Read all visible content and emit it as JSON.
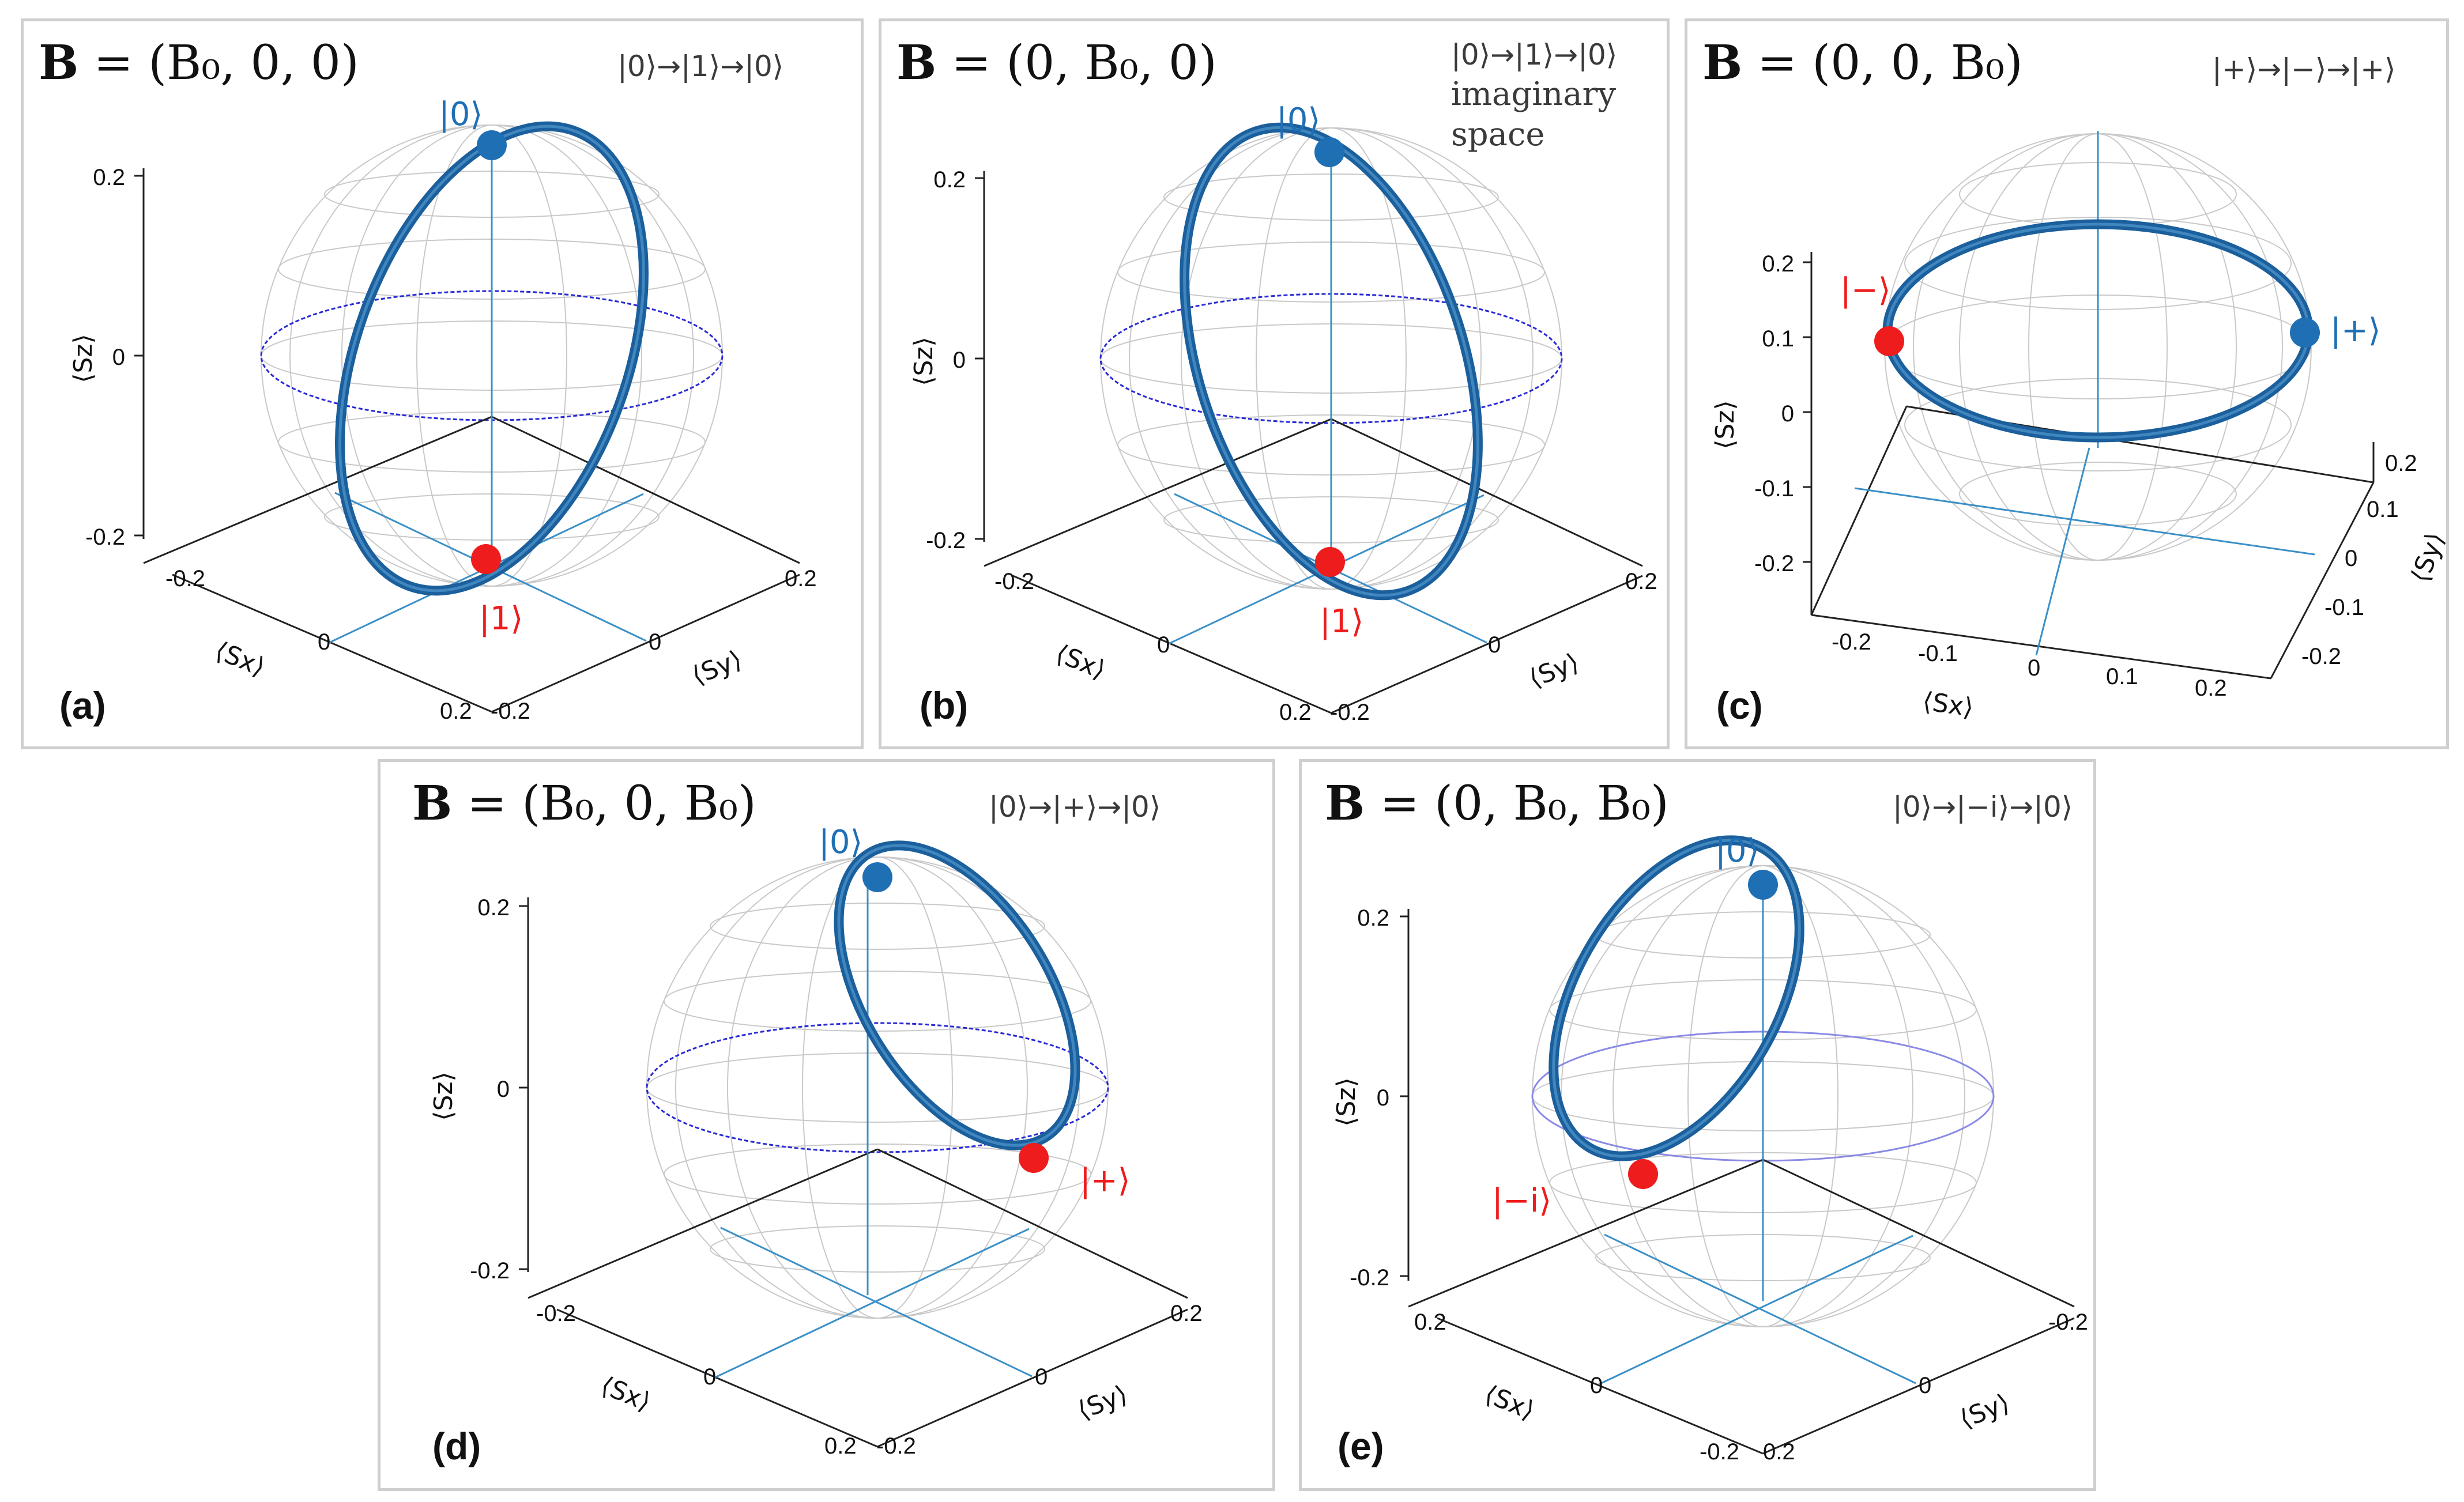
{
  "chart_data": [
    {
      "id": "a",
      "type": "scatter",
      "panel_label": "(a)",
      "field": {
        "prefix": "B",
        "value": " = (B₀, 0, 0)"
      },
      "transition": "|0⟩→|1⟩→|0⟩",
      "note": "",
      "axes": {
        "x": "⟨Sx⟩",
        "y": "⟨Sy⟩",
        "z": "⟨Sz⟩"
      },
      "z_ticks": [
        "0.2",
        "0",
        "-0.2"
      ],
      "x_ticks": [
        "-0.2",
        "0",
        "0.2"
      ],
      "y_ticks": [
        "-0.2",
        "0",
        "0.2"
      ],
      "zlim": [
        -0.25,
        0.25
      ],
      "trajectory": "great circle in the y-z plane",
      "states": [
        {
          "label": "|0⟩",
          "color": "#1f6fb5",
          "x": 0,
          "y": 0,
          "z": 0.25
        },
        {
          "label": "|1⟩",
          "color": "#ee1c1c",
          "x": 0,
          "y": 0,
          "z": -0.25
        }
      ]
    },
    {
      "id": "b",
      "type": "scatter",
      "panel_label": "(b)",
      "field": {
        "prefix": "B",
        "value": " = (0, B₀, 0)"
      },
      "transition": "|0⟩→|1⟩→|0⟩",
      "note": [
        "imaginary",
        "space"
      ],
      "axes": {
        "x": "⟨Sx⟩",
        "y": "⟨Sy⟩",
        "z": "⟨Sz⟩"
      },
      "z_ticks": [
        "0.2",
        "0",
        "-0.2"
      ],
      "x_ticks": [
        "-0.2",
        "0",
        "0.2"
      ],
      "y_ticks": [
        "-0.2",
        "0",
        "0.2"
      ],
      "zlim": [
        -0.25,
        0.25
      ],
      "trajectory": "great circle in the x-z plane",
      "states": [
        {
          "label": "|0⟩",
          "color": "#1f6fb5",
          "x": 0,
          "y": 0,
          "z": 0.25
        },
        {
          "label": "|1⟩",
          "color": "#ee1c1c",
          "x": 0,
          "y": 0,
          "z": -0.25
        }
      ]
    },
    {
      "id": "c",
      "type": "scatter",
      "panel_label": "(c)",
      "field": {
        "prefix": "B",
        "value": " = (0, 0, B₀)"
      },
      "transition": "|+⟩→|−⟩→|+⟩",
      "note": "",
      "axes": {
        "x": "⟨Sx⟩",
        "y": "⟨Sy⟩",
        "z": "⟨Sz⟩"
      },
      "z_ticks": [
        "0.2",
        "0.1",
        "0",
        "-0.1",
        "-0.2"
      ],
      "x_ticks": [
        "-0.2",
        "-0.1",
        "0",
        "0.1",
        "0.2"
      ],
      "y_ticks": [
        "0.2",
        "0.1",
        "0",
        "-0.1",
        "-0.2"
      ],
      "zlim": [
        -0.25,
        0.25
      ],
      "trajectory": "equatorial circle in the x-y plane",
      "states": [
        {
          "label": "|−⟩",
          "color": "#ee1c1c",
          "x": -0.25,
          "y": 0,
          "z": 0
        },
        {
          "label": "|+⟩",
          "color": "#1f6fb5",
          "x": 0.25,
          "y": 0,
          "z": 0
        }
      ]
    },
    {
      "id": "d",
      "type": "scatter",
      "panel_label": "(d)",
      "field": {
        "prefix": "B",
        "value": " = (B₀, 0, B₀)"
      },
      "transition": "|0⟩→|+⟩→|0⟩",
      "note": "",
      "axes": {
        "x": "⟨Sx⟩",
        "y": "⟨Sy⟩",
        "z": "⟨Sz⟩"
      },
      "z_ticks": [
        "0.2",
        "0",
        "-0.2"
      ],
      "x_ticks": [
        "-0.2",
        "0",
        "0.2"
      ],
      "y_ticks": [
        "-0.2",
        "0",
        "0.2"
      ],
      "zlim": [
        -0.25,
        0.25
      ],
      "trajectory": "small circle through |0⟩ and |+⟩",
      "states": [
        {
          "label": "|0⟩",
          "color": "#1f6fb5",
          "x": 0,
          "y": 0,
          "z": 0.25
        },
        {
          "label": "|+⟩",
          "color": "#ee1c1c",
          "x": 0.25,
          "y": 0,
          "z": 0
        }
      ]
    },
    {
      "id": "e",
      "type": "scatter",
      "panel_label": "(e)",
      "field": {
        "prefix": "B",
        "value": " = (0, B₀, B₀)"
      },
      "transition": "|0⟩→|−i⟩→|0⟩",
      "note": "",
      "axes": {
        "x": "⟨Sx⟩",
        "y": "⟨Sy⟩",
        "z": "⟨Sz⟩"
      },
      "z_ticks": [
        "0.2",
        "0",
        "-0.2"
      ],
      "x_ticks": [
        "0.2",
        "0",
        "-0.2"
      ],
      "y_ticks": [
        "0.2",
        "0",
        "-0.2"
      ],
      "zlim": [
        -0.25,
        0.25
      ],
      "trajectory": "small circle through |0⟩ and |−i⟩",
      "states": [
        {
          "label": "|0⟩",
          "color": "#1f6fb5",
          "x": 0,
          "y": 0,
          "z": 0.25
        },
        {
          "label": "|−i⟩",
          "color": "#ee1c1c",
          "x": 0,
          "y": -0.25,
          "z": 0
        }
      ]
    }
  ]
}
